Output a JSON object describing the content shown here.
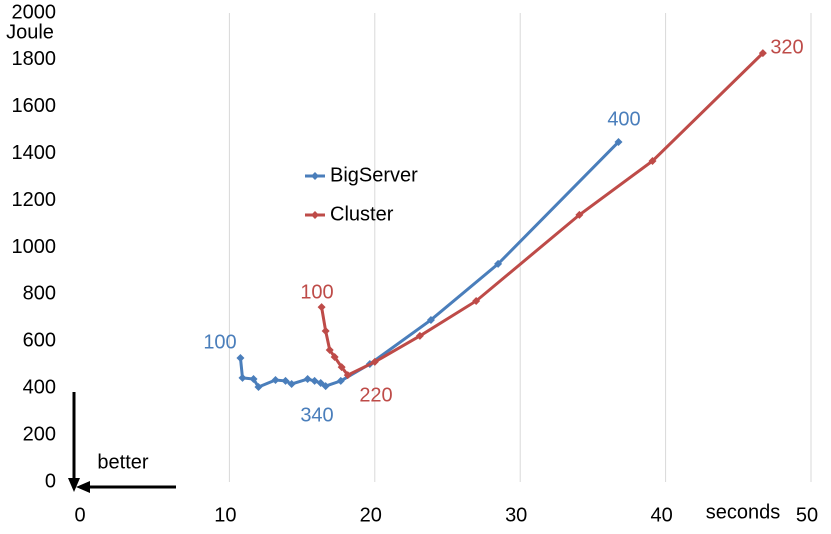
{
  "chart_data": {
    "type": "line",
    "y_label": "Joule",
    "x_label": "seconds",
    "xlim": [
      0,
      50
    ],
    "xticks": [
      0,
      10,
      20,
      30,
      40,
      50
    ],
    "ylim": [
      0,
      2000
    ],
    "yticks": [
      0,
      200,
      400,
      600,
      800,
      1000,
      1200,
      1400,
      1600,
      1800,
      2000
    ],
    "grid": true,
    "series": [
      {
        "name": "BigServer",
        "color": "#4a7ebb",
        "x": [
          10.76,
          10.9,
          11.66,
          12.0,
          13.17,
          13.86,
          14.28,
          15.38,
          15.86,
          16.28,
          16.62,
          17.66,
          19.66,
          23.86,
          28.48,
          36.76
        ],
        "values": [
          529,
          444,
          439,
          405,
          435,
          431,
          418,
          439,
          431,
          422,
          409,
          431,
          503,
          691,
          930,
          1450
        ]
      },
      {
        "name": "Cluster",
        "color": "#be4b48",
        "x": [
          16.34,
          16.62,
          16.9,
          17.24,
          17.72,
          18.14,
          20.0,
          23.1,
          26.97,
          34.07,
          39.1,
          46.69
        ],
        "values": [
          746,
          644,
          563,
          533,
          490,
          456,
          512,
          623,
          772,
          1139,
          1369,
          1829
        ]
      }
    ],
    "annotations": [
      {
        "text": "100",
        "color": "#4a7ebb"
      },
      {
        "text": "340",
        "color": "#4a7ebb"
      },
      {
        "text": "400",
        "color": "#4a7ebb"
      },
      {
        "text": "100",
        "color": "#be4b48"
      },
      {
        "text": "220",
        "color": "#be4b48"
      },
      {
        "text": "320",
        "color": "#be4b48"
      }
    ],
    "note": "better"
  }
}
